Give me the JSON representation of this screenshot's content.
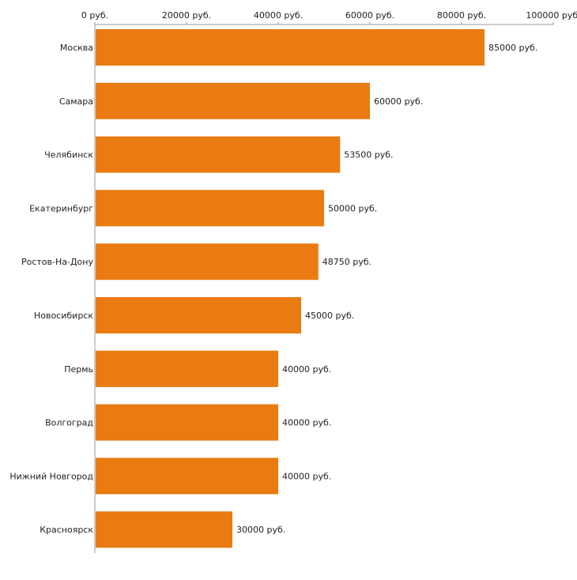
{
  "chart_data": {
    "type": "bar",
    "orientation": "horizontal",
    "axis_position": "top",
    "categories": [
      "Москва",
      "Самара",
      "Челябинск",
      "Екатеринбург",
      "Ростов-На-Дону",
      "Новосибирск",
      "Пермь",
      "Волгоград",
      "Нижний Новгород",
      "Красноярск"
    ],
    "values": [
      85000,
      60000,
      53500,
      50000,
      48750,
      45000,
      40000,
      40000,
      40000,
      30000
    ],
    "value_labels": [
      "85000 руб.",
      "60000 руб.",
      "53500 руб.",
      "50000 руб.",
      "48750 руб.",
      "45000 руб.",
      "40000 руб.",
      "40000 руб.",
      "40000 руб.",
      "30000 руб."
    ],
    "ticks": [
      0,
      20000,
      40000,
      60000,
      80000,
      100000
    ],
    "tick_labels": [
      "0 руб.",
      "20000 руб.",
      "40000 руб.",
      "60000 руб.",
      "80000 руб.",
      "100000 руб."
    ],
    "xlim": [
      0,
      100000
    ],
    "title": "",
    "xlabel": "",
    "ylabel": "",
    "grid": false,
    "bar_color": "#E97B12",
    "axis_color": "#999999",
    "text_color": "#222222"
  }
}
